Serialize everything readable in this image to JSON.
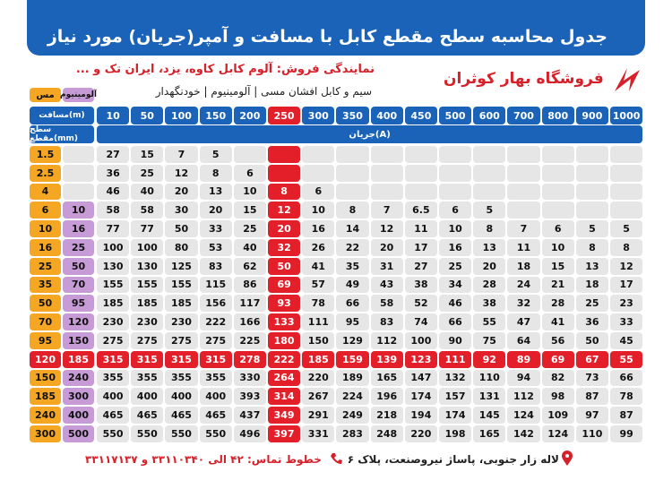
{
  "header": {
    "title": "جدول محاسبه سطح مقطع کابل با مسافت و آمپر(جریان) مورد نیاز",
    "agency": "نمایندگی فروش: آلوم کابل کاوه، یزد، ایران تک و ...",
    "products": "سیم و کابل افشان مسی | آلومینیوم | خودنگهدار",
    "store": "فروشگاه بهار کوثران"
  },
  "table": {
    "copper_label": "مس",
    "aluminum_label": "آلومینیوم",
    "distance_label": "مسافت(m)",
    "section_label": "سطح مقطع(mm)",
    "current_label": "جریان(A)",
    "distances": [
      10,
      50,
      100,
      150,
      200,
      250,
      300,
      350,
      400,
      450,
      500,
      600,
      700,
      800,
      900,
      1000
    ],
    "rows": [
      {
        "copper": 1.5,
        "aluminum": null,
        "values": [
          27,
          15,
          7,
          5,
          null,
          null,
          null,
          null,
          null,
          null,
          null,
          null,
          null,
          null,
          null,
          null
        ]
      },
      {
        "copper": 2.5,
        "aluminum": null,
        "values": [
          36,
          25,
          12,
          8,
          6,
          null,
          null,
          null,
          null,
          null,
          null,
          null,
          null,
          null,
          null,
          null
        ]
      },
      {
        "copper": 4,
        "aluminum": null,
        "values": [
          46,
          40,
          20,
          13,
          10,
          8,
          6,
          null,
          null,
          null,
          null,
          null,
          null,
          null,
          null,
          null
        ]
      },
      {
        "copper": 6,
        "aluminum": 10,
        "values": [
          58,
          58,
          30,
          20,
          15,
          12,
          10,
          8,
          7,
          6.5,
          6,
          5,
          null,
          null,
          null,
          null
        ]
      },
      {
        "copper": 10,
        "aluminum": 16,
        "values": [
          77,
          77,
          50,
          33,
          25,
          20,
          16,
          14,
          12,
          11,
          10,
          8,
          7,
          6,
          5,
          5
        ]
      },
      {
        "copper": 16,
        "aluminum": 25,
        "values": [
          100,
          100,
          80,
          53,
          40,
          32,
          26,
          22,
          20,
          17,
          16,
          13,
          11,
          10,
          8,
          8
        ]
      },
      {
        "copper": 25,
        "aluminum": 50,
        "values": [
          130,
          130,
          125,
          83,
          62,
          50,
          41,
          35,
          31,
          27,
          25,
          20,
          18,
          15,
          13,
          12
        ]
      },
      {
        "copper": 35,
        "aluminum": 70,
        "values": [
          155,
          155,
          155,
          115,
          86,
          69,
          57,
          49,
          43,
          38,
          34,
          28,
          24,
          21,
          18,
          17
        ]
      },
      {
        "copper": 50,
        "aluminum": 95,
        "values": [
          185,
          185,
          185,
          156,
          117,
          93,
          78,
          66,
          58,
          52,
          46,
          38,
          32,
          28,
          25,
          23
        ]
      },
      {
        "copper": 70,
        "aluminum": 120,
        "values": [
          230,
          230,
          230,
          222,
          166,
          133,
          111,
          95,
          83,
          74,
          66,
          55,
          47,
          41,
          36,
          33
        ]
      },
      {
        "copper": 95,
        "aluminum": 150,
        "values": [
          275,
          275,
          275,
          275,
          225,
          180,
          150,
          129,
          112,
          100,
          90,
          75,
          64,
          56,
          50,
          45
        ]
      },
      {
        "copper": 120,
        "aluminum": 185,
        "values": [
          315,
          315,
          315,
          315,
          278,
          222,
          185,
          159,
          139,
          123,
          111,
          92,
          89,
          69,
          67,
          55
        ]
      },
      {
        "copper": 150,
        "aluminum": 240,
        "values": [
          355,
          355,
          355,
          355,
          330,
          264,
          220,
          189,
          165,
          147,
          132,
          110,
          94,
          82,
          73,
          66
        ]
      },
      {
        "copper": 185,
        "aluminum": 300,
        "values": [
          400,
          400,
          400,
          400,
          393,
          314,
          267,
          224,
          196,
          174,
          157,
          131,
          112,
          98,
          87,
          78
        ]
      },
      {
        "copper": 240,
        "aluminum": 400,
        "values": [
          465,
          465,
          465,
          465,
          437,
          349,
          291,
          249,
          218,
          194,
          174,
          145,
          124,
          109,
          97,
          87
        ]
      },
      {
        "copper": 300,
        "aluminum": 500,
        "values": [
          550,
          550,
          550,
          550,
          496,
          397,
          331,
          283,
          248,
          220,
          198,
          165,
          142,
          124,
          110,
          99
        ]
      }
    ]
  },
  "footer": {
    "address": "لاله زار جنوبی، پاساژ نیروصنعت، پلاک ۶",
    "phones": "خطوط تماس: ۴۲ الی ۳۳۱۱۰۳۴۰ و ۳۳۱۱۷۱۳۷"
  }
}
